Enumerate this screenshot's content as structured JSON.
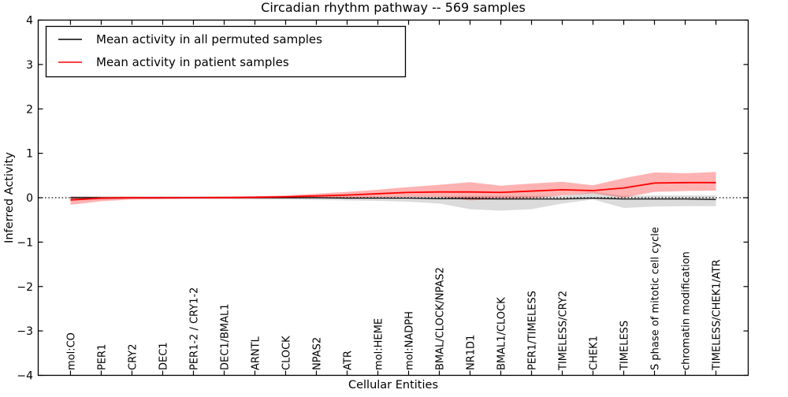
{
  "figure": {
    "title": "Circadian rhythm pathway -- 569 samples",
    "xlabel": "Cellular Entities",
    "ylabel": "Inferred Activity"
  },
  "legend": {
    "items": [
      {
        "label": "Mean activity in all permuted samples",
        "color": "#000000"
      },
      {
        "label": "Mean activity in patient samples",
        "color": "#ff0000"
      }
    ]
  },
  "chart_data": {
    "type": "line",
    "title": "Circadian rhythm pathway -- 569 samples",
    "xlabel": "Cellular Entities",
    "ylabel": "Inferred Activity",
    "ylim": [
      -4,
      4
    ],
    "yticks": [
      4,
      3,
      2,
      1,
      0,
      -1,
      -2,
      -3,
      -4
    ],
    "ytick_labels": [
      "4",
      "3",
      "2",
      "1",
      "0",
      "−1",
      "−2",
      "−3",
      "−4"
    ],
    "grid": false,
    "legend_position": "upper left",
    "zero_reference_line": {
      "y": 0,
      "style": "dotted",
      "color": "#000000"
    },
    "categories": [
      "mol:CO",
      "PER1",
      "CRY2",
      "DEC1",
      "PER1-2 / CRY1-2",
      "DEC1/BMAL1",
      "ARNTL",
      "CLOCK",
      "NPAS2",
      "ATR",
      "mol:HEME",
      "mol:NADPH",
      "BMAL/CLOCK/NPAS2",
      "NR1D1",
      "BMAL1/CLOCK",
      "PER1/TIMELESS",
      "TIMELESS/CRY2",
      "CHEK1",
      "TIMELESS",
      "S phase of mitotic cell cycle",
      "chromatin modification",
      "TIMELESS/CHEK1/ATR"
    ],
    "series": [
      {
        "name": "Mean activity in all permuted samples",
        "color": "#000000",
        "band_color": "rgba(0,0,0,0.14)",
        "line_width": 1.2,
        "mean": [
          0.0,
          0.0,
          0.0,
          0.0,
          0.0,
          0.0,
          0.0,
          0.0,
          0.0,
          -0.01,
          -0.01,
          -0.01,
          -0.02,
          -0.02,
          -0.03,
          -0.03,
          -0.03,
          -0.01,
          -0.03,
          -0.03,
          -0.03,
          -0.04
        ],
        "upper": [
          0.04,
          0.03,
          0.03,
          0.03,
          0.03,
          0.03,
          0.03,
          0.03,
          0.03,
          0.03,
          0.03,
          0.03,
          0.03,
          0.04,
          0.04,
          0.04,
          0.04,
          0.13,
          0.04,
          0.05,
          0.05,
          0.05
        ],
        "lower": [
          -0.05,
          -0.04,
          -0.03,
          -0.03,
          -0.03,
          -0.03,
          -0.04,
          -0.04,
          -0.05,
          -0.06,
          -0.07,
          -0.09,
          -0.13,
          -0.26,
          -0.29,
          -0.26,
          -0.13,
          -0.04,
          -0.23,
          -0.2,
          -0.19,
          -0.19
        ]
      },
      {
        "name": "Mean activity in patient samples",
        "color": "#ff0000",
        "band_color": "rgba(255,0,0,0.30)",
        "line_width": 1.8,
        "mean": [
          -0.05,
          -0.01,
          0.0,
          0.0,
          0.0,
          0.0,
          0.01,
          0.02,
          0.04,
          0.06,
          0.09,
          0.12,
          0.13,
          0.13,
          0.12,
          0.15,
          0.18,
          0.16,
          0.22,
          0.33,
          0.34,
          0.34
        ],
        "upper": [
          0.02,
          0.02,
          0.02,
          0.02,
          0.02,
          0.03,
          0.03,
          0.05,
          0.09,
          0.13,
          0.18,
          0.24,
          0.29,
          0.35,
          0.27,
          0.32,
          0.36,
          0.28,
          0.44,
          0.57,
          0.55,
          0.58
        ],
        "lower": [
          -0.16,
          -0.08,
          -0.04,
          -0.03,
          -0.02,
          -0.02,
          -0.02,
          -0.01,
          -0.01,
          0.0,
          0.01,
          0.02,
          0.02,
          -0.06,
          -0.03,
          -0.01,
          0.05,
          0.1,
          0.0,
          0.13,
          0.15,
          0.16
        ]
      }
    ]
  }
}
